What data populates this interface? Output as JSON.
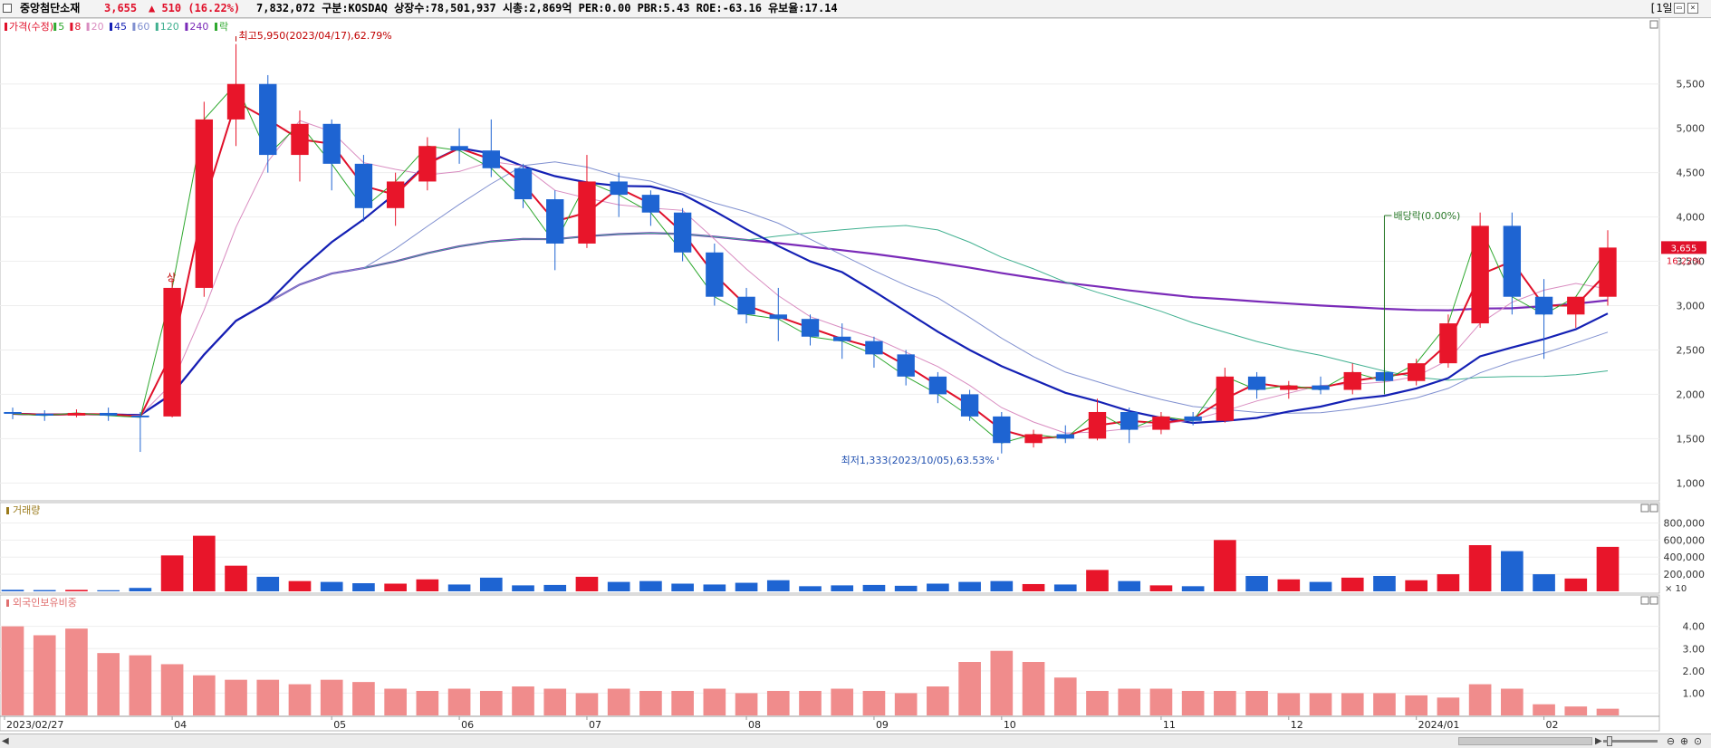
{
  "header": {
    "name": "중앙첨단소재",
    "price": "3,655",
    "change": "▲ 510 (16.22%)",
    "info": "7,832,072  구분:KOSDAQ 상장수:78,501,937 시총:2,869억 PER:0.00 PBR:5.43 ROE:-63.16 유보율:17.14",
    "period": "[1일]"
  },
  "colors": {
    "up": "#e8152a",
    "down": "#1e64d2",
    "ma5": "#2ea82e",
    "ma8": "#e0102a",
    "ma20": "#d98cc0",
    "ma45": "#1420b4",
    "ma60": "#8090d0",
    "ma120": "#40b090",
    "ma240": "#7a2ab8",
    "foreign": "#f08c8c"
  },
  "price_legend": [
    {
      "label": "가격(수정)",
      "color": "#e0102a"
    },
    {
      "label": "5",
      "color": "#2ea82e"
    },
    {
      "label": "8",
      "color": "#e0102a"
    },
    {
      "label": "20",
      "color": "#d98cc0"
    },
    {
      "label": "45",
      "color": "#1420b4"
    },
    {
      "label": "60",
      "color": "#8090d0"
    },
    {
      "label": "120",
      "color": "#40b090"
    },
    {
      "label": "240",
      "color": "#7a2ab8"
    },
    {
      "label": "락",
      "color": "#2ea82e"
    }
  ],
  "volume_panel": {
    "title": "거래량",
    "unit": "× 10"
  },
  "foreign_panel": {
    "title": "외국인보유비중"
  },
  "annotations": {
    "high": "최고5,950(2023/04/17),62.79%",
    "low": "최저1,333(2023/10/05),63.53%",
    "dividend": "배당락(0.00%)",
    "up_limit": "상",
    "current_price": "3,655",
    "current_change": "16.22%"
  },
  "x_ticks": [
    "2023/02/27",
    "04",
    "05",
    "06",
    "07",
    "08",
    "09",
    "10",
    "11",
    "12",
    "2024/01",
    "02"
  ],
  "chart_data": [
    {
      "type": "candlestick",
      "panel": "price",
      "x": [
        "2023/02/27",
        "2023/03/06",
        "2023/03/13",
        "2023/03/20",
        "2023/03/27",
        "2023/04/03",
        "2023/04/10",
        "2023/04/17",
        "2023/04/24",
        "2023/05/02",
        "2023/05/08",
        "2023/05/15",
        "2023/05/22",
        "2023/05/30",
        "2023/06/05",
        "2023/06/12",
        "2023/06/19",
        "2023/06/26",
        "2023/07/03",
        "2023/07/10",
        "2023/07/17",
        "2023/07/24",
        "2023/07/31",
        "2023/08/07",
        "2023/08/14",
        "2023/08/21",
        "2023/08/28",
        "2023/09/04",
        "2023/09/11",
        "2023/09/18",
        "2023/09/25",
        "2023/10/05",
        "2023/10/10",
        "2023/10/16",
        "2023/10/23",
        "2023/10/30",
        "2023/11/06",
        "2023/11/13",
        "2023/11/20",
        "2023/11/27",
        "2023/12/04",
        "2023/12/11",
        "2023/12/18",
        "2023/12/26",
        "2024/01/02",
        "2024/01/08",
        "2024/01/15",
        "2024/01/22",
        "2024/01/29",
        "2024/02/05",
        "2024/02/13"
      ],
      "ohlc": [
        [
          1800,
          1850,
          1720,
          1780
        ],
        [
          1780,
          1820,
          1700,
          1760
        ],
        [
          1760,
          1830,
          1740,
          1790
        ],
        [
          1790,
          1850,
          1700,
          1760
        ],
        [
          1760,
          1800,
          1350,
          1740
        ],
        [
          1750,
          3300,
          1740,
          3200
        ],
        [
          3200,
          5300,
          3100,
          5100
        ],
        [
          5100,
          5950,
          4800,
          5500
        ],
        [
          5500,
          5600,
          4500,
          4700
        ],
        [
          4700,
          5200,
          4400,
          5050
        ],
        [
          5050,
          5100,
          4300,
          4600
        ],
        [
          4600,
          4700,
          3950,
          4100
        ],
        [
          4100,
          4500,
          3900,
          4400
        ],
        [
          4400,
          4900,
          4300,
          4800
        ],
        [
          4800,
          5000,
          4600,
          4750
        ],
        [
          4750,
          5100,
          4450,
          4550
        ],
        [
          4550,
          4600,
          4100,
          4200
        ],
        [
          4200,
          4300,
          3400,
          3700
        ],
        [
          3700,
          4700,
          3650,
          4400
        ],
        [
          4400,
          4500,
          4000,
          4250
        ],
        [
          4250,
          4300,
          3900,
          4050
        ],
        [
          4050,
          4100,
          3500,
          3600
        ],
        [
          3600,
          3700,
          3000,
          3100
        ],
        [
          3100,
          3200,
          2800,
          2900
        ],
        [
          2900,
          3200,
          2600,
          2850
        ],
        [
          2850,
          2900,
          2550,
          2650
        ],
        [
          2650,
          2800,
          2400,
          2600
        ],
        [
          2600,
          2650,
          2300,
          2450
        ],
        [
          2450,
          2500,
          2100,
          2200
        ],
        [
          2200,
          2250,
          1900,
          2000
        ],
        [
          2000,
          2050,
          1700,
          1750
        ],
        [
          1750,
          1800,
          1333,
          1450
        ],
        [
          1450,
          1600,
          1400,
          1550
        ],
        [
          1550,
          1650,
          1450,
          1500
        ],
        [
          1500,
          1950,
          1480,
          1800
        ],
        [
          1800,
          1850,
          1450,
          1600
        ],
        [
          1600,
          1800,
          1550,
          1750
        ],
        [
          1750,
          1800,
          1650,
          1700
        ],
        [
          1700,
          2300,
          1680,
          2200
        ],
        [
          2200,
          2250,
          1950,
          2050
        ],
        [
          2050,
          2150,
          1950,
          2100
        ],
        [
          2100,
          2200,
          2000,
          2050
        ],
        [
          2050,
          2350,
          2000,
          2250
        ],
        [
          2250,
          2300,
          2000,
          2150
        ],
        [
          2150,
          2400,
          2100,
          2350
        ],
        [
          2350,
          2900,
          2300,
          2800
        ],
        [
          2800,
          4050,
          2750,
          3900
        ],
        [
          3900,
          4050,
          2900,
          3100
        ],
        [
          3100,
          3300,
          2400,
          2900
        ],
        [
          2900,
          3050,
          2750,
          3100
        ],
        [
          3100,
          3850,
          3000,
          3655
        ]
      ],
      "y_ticks": [
        1000,
        1500,
        2000,
        2500,
        3000,
        3500,
        4000,
        4500,
        5000,
        5500
      ],
      "ylim": [
        850,
        6100
      ]
    },
    {
      "type": "bar",
      "panel": "volume",
      "unit": "× 10",
      "values": [
        18000,
        15000,
        17000,
        13000,
        40000,
        420000,
        650000,
        300000,
        170000,
        120000,
        110000,
        95000,
        90000,
        140000,
        80000,
        160000,
        70000,
        75000,
        170000,
        110000,
        120000,
        90000,
        80000,
        100000,
        130000,
        60000,
        70000,
        75000,
        65000,
        90000,
        110000,
        120000,
        85000,
        80000,
        250000,
        120000,
        70000,
        60000,
        600000,
        180000,
        140000,
        110000,
        160000,
        180000,
        130000,
        200000,
        540000,
        470000,
        200000,
        150000,
        520000
      ],
      "y_ticks": [
        200000,
        400000,
        600000,
        800000
      ],
      "ylim": [
        0,
        900000
      ]
    },
    {
      "type": "bar",
      "panel": "foreign_ownership",
      "values": [
        4.0,
        3.6,
        3.9,
        2.8,
        2.7,
        2.3,
        1.8,
        1.6,
        1.6,
        1.4,
        1.6,
        1.5,
        1.2,
        1.1,
        1.2,
        1.1,
        1.3,
        1.2,
        1.0,
        1.2,
        1.1,
        1.1,
        1.2,
        1.0,
        1.1,
        1.1,
        1.2,
        1.1,
        1.0,
        1.3,
        2.4,
        2.9,
        2.4,
        1.7,
        1.1,
        1.2,
        1.2,
        1.1,
        1.1,
        1.1,
        1.0,
        1.0,
        1.0,
        1.0,
        0.9,
        0.8,
        1.4,
        1.2,
        0.5,
        0.4,
        0.3
      ],
      "y_ticks": [
        1.0,
        2.0,
        3.0,
        4.0
      ],
      "ylim": [
        0,
        4.8
      ]
    }
  ]
}
